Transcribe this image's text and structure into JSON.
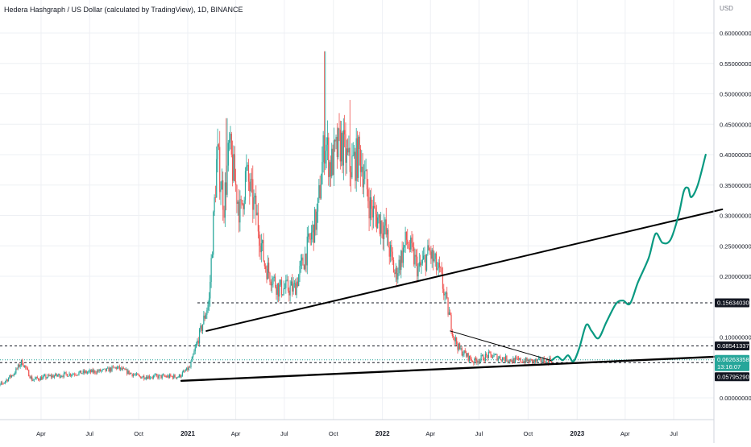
{
  "header": {
    "title": "Hedera Hashgraph / US Dollar (calculated by TradingView), 1D, BINANCE",
    "currency": "USD"
  },
  "chart_data": {
    "type": "candlestick",
    "symbol": "HBARUSD",
    "interval": "1D",
    "exchange": "BINANCE",
    "ylim": [
      -0.01,
      0.62
    ],
    "y_ticks": [
      {
        "label": "0.60000000",
        "value": 0.6
      },
      {
        "label": "0.55000000",
        "value": 0.55
      },
      {
        "label": "0.50000000",
        "value": 0.5
      },
      {
        "label": "0.45000000",
        "value": 0.45
      },
      {
        "label": "0.40000000",
        "value": 0.4
      },
      {
        "label": "0.35000000",
        "value": 0.35
      },
      {
        "label": "0.30000000",
        "value": 0.3
      },
      {
        "label": "0.25000000",
        "value": 0.25
      },
      {
        "label": "0.20000000",
        "value": 0.2
      },
      {
        "label": "0.10000000",
        "value": 0.1
      },
      {
        "label": "0.00000000",
        "value": 0.0
      }
    ],
    "x_ticks": [
      {
        "label": "Apr",
        "date": "2020-04"
      },
      {
        "label": "Jul",
        "date": "2020-07"
      },
      {
        "label": "Oct",
        "date": "2020-10"
      },
      {
        "label": "2021",
        "date": "2021-01"
      },
      {
        "label": "Apr",
        "date": "2021-04"
      },
      {
        "label": "Jul",
        "date": "2021-07"
      },
      {
        "label": "Oct",
        "date": "2021-10"
      },
      {
        "label": "2022",
        "date": "2022-01"
      },
      {
        "label": "Apr",
        "date": "2022-04"
      },
      {
        "label": "Jul",
        "date": "2022-07"
      },
      {
        "label": "Oct",
        "date": "2022-10"
      },
      {
        "label": "2023",
        "date": "2023-01"
      },
      {
        "label": "Apr",
        "date": "2023-04"
      },
      {
        "label": "Jul",
        "date": "2023-07"
      }
    ],
    "price_path": [
      [
        "2020-01-01",
        0.01
      ],
      [
        "2020-02-10",
        0.04
      ],
      [
        "2020-02-25",
        0.06
      ],
      [
        "2020-03-15",
        0.03
      ],
      [
        "2020-04-15",
        0.035
      ],
      [
        "2020-06-01",
        0.04
      ],
      [
        "2020-08-01",
        0.045
      ],
      [
        "2020-08-20",
        0.05
      ],
      [
        "2020-10-01",
        0.035
      ],
      [
        "2020-12-15",
        0.035
      ],
      [
        "2021-01-05",
        0.05
      ],
      [
        "2021-01-25",
        0.11
      ],
      [
        "2021-02-10",
        0.16
      ],
      [
        "2021-02-25",
        0.4
      ],
      [
        "2021-03-10",
        0.32
      ],
      [
        "2021-03-20",
        0.41
      ],
      [
        "2021-04-10",
        0.3
      ],
      [
        "2021-04-20",
        0.37
      ],
      [
        "2021-05-10",
        0.3
      ],
      [
        "2021-05-25",
        0.22
      ],
      [
        "2021-06-20",
        0.18
      ],
      [
        "2021-07-20",
        0.18
      ],
      [
        "2021-08-15",
        0.25
      ],
      [
        "2021-09-01",
        0.3
      ],
      [
        "2021-09-15",
        0.43
      ],
      [
        "2021-09-25",
        0.38
      ],
      [
        "2021-10-15",
        0.42
      ],
      [
        "2021-11-01",
        0.38
      ],
      [
        "2021-11-20",
        0.4
      ],
      [
        "2021-12-10",
        0.31
      ],
      [
        "2022-01-05",
        0.28
      ],
      [
        "2022-01-25",
        0.2
      ],
      [
        "2022-02-15",
        0.26
      ],
      [
        "2022-03-10",
        0.21
      ],
      [
        "2022-03-30",
        0.24
      ],
      [
        "2022-04-20",
        0.2
      ],
      [
        "2022-05-15",
        0.1
      ],
      [
        "2022-05-25",
        0.08
      ],
      [
        "2022-06-20",
        0.06
      ],
      [
        "2022-07-20",
        0.07
      ],
      [
        "2022-09-01",
        0.062
      ],
      [
        "2022-10-15",
        0.06
      ],
      [
        "2022-11-15",
        0.0626
      ]
    ],
    "notable_highs": [
      {
        "date": "2021-03-15",
        "high": 0.46
      },
      {
        "date": "2021-09-15",
        "high": 0.57
      },
      {
        "date": "2021-11-01",
        "high": 0.49
      }
    ],
    "horizontal_levels": [
      {
        "value": 0.1563403,
        "label": "0.15634030",
        "style": "dashed",
        "label_color": "#131722"
      },
      {
        "value": 0.08541337,
        "label": "0.08541337",
        "style": "dashed",
        "label_color": "#131722"
      },
      {
        "value": 0.0626,
        "label": "0.06263358",
        "countdown": "13:16:07",
        "style": "dotted",
        "label_color": "#26a69a"
      },
      {
        "value": 0.0579529,
        "label": "0.05795290",
        "style": "dashed",
        "label_color": "#131722"
      }
    ],
    "trendlines": [
      {
        "name": "upper",
        "p1": [
          "2021-02-05",
          0.11
        ],
        "p2": [
          "2023-09-30",
          0.31
        ],
        "width": 2
      },
      {
        "name": "support",
        "p1": [
          "2020-12-20",
          0.028
        ],
        "p2": [
          "2023-09-25",
          0.068
        ],
        "width": 2.4
      },
      {
        "name": "wedge",
        "p1": [
          "2022-05-08",
          0.11
        ],
        "p2": [
          "2022-11-15",
          0.061
        ],
        "width": 1
      }
    ],
    "projection": {
      "color": "#089981",
      "points": [
        [
          "2022-11-15",
          0.062
        ],
        [
          "2022-11-25",
          0.068
        ],
        [
          "2022-12-05",
          0.062
        ],
        [
          "2022-12-15",
          0.07
        ],
        [
          "2022-12-25",
          0.06
        ],
        [
          "2023-01-05",
          0.082
        ],
        [
          "2023-01-18",
          0.12
        ],
        [
          "2023-01-28",
          0.11
        ],
        [
          "2023-02-10",
          0.098
        ],
        [
          "2023-02-25",
          0.125
        ],
        [
          "2023-03-15",
          0.155
        ],
        [
          "2023-03-28",
          0.16
        ],
        [
          "2023-04-10",
          0.155
        ],
        [
          "2023-04-25",
          0.19
        ],
        [
          "2023-05-15",
          0.23
        ],
        [
          "2023-05-28",
          0.27
        ],
        [
          "2023-06-10",
          0.255
        ],
        [
          "2023-06-25",
          0.26
        ],
        [
          "2023-07-10",
          0.3
        ],
        [
          "2023-07-20",
          0.34
        ],
        [
          "2023-07-28",
          0.345
        ],
        [
          "2023-08-03",
          0.33
        ],
        [
          "2023-08-15",
          0.35
        ],
        [
          "2023-08-30",
          0.4
        ]
      ]
    },
    "colors": {
      "up": "#26a69a",
      "down": "#ef5350",
      "grid": "#eef0f4",
      "axis_text": "#131722",
      "line": "#000000"
    }
  }
}
